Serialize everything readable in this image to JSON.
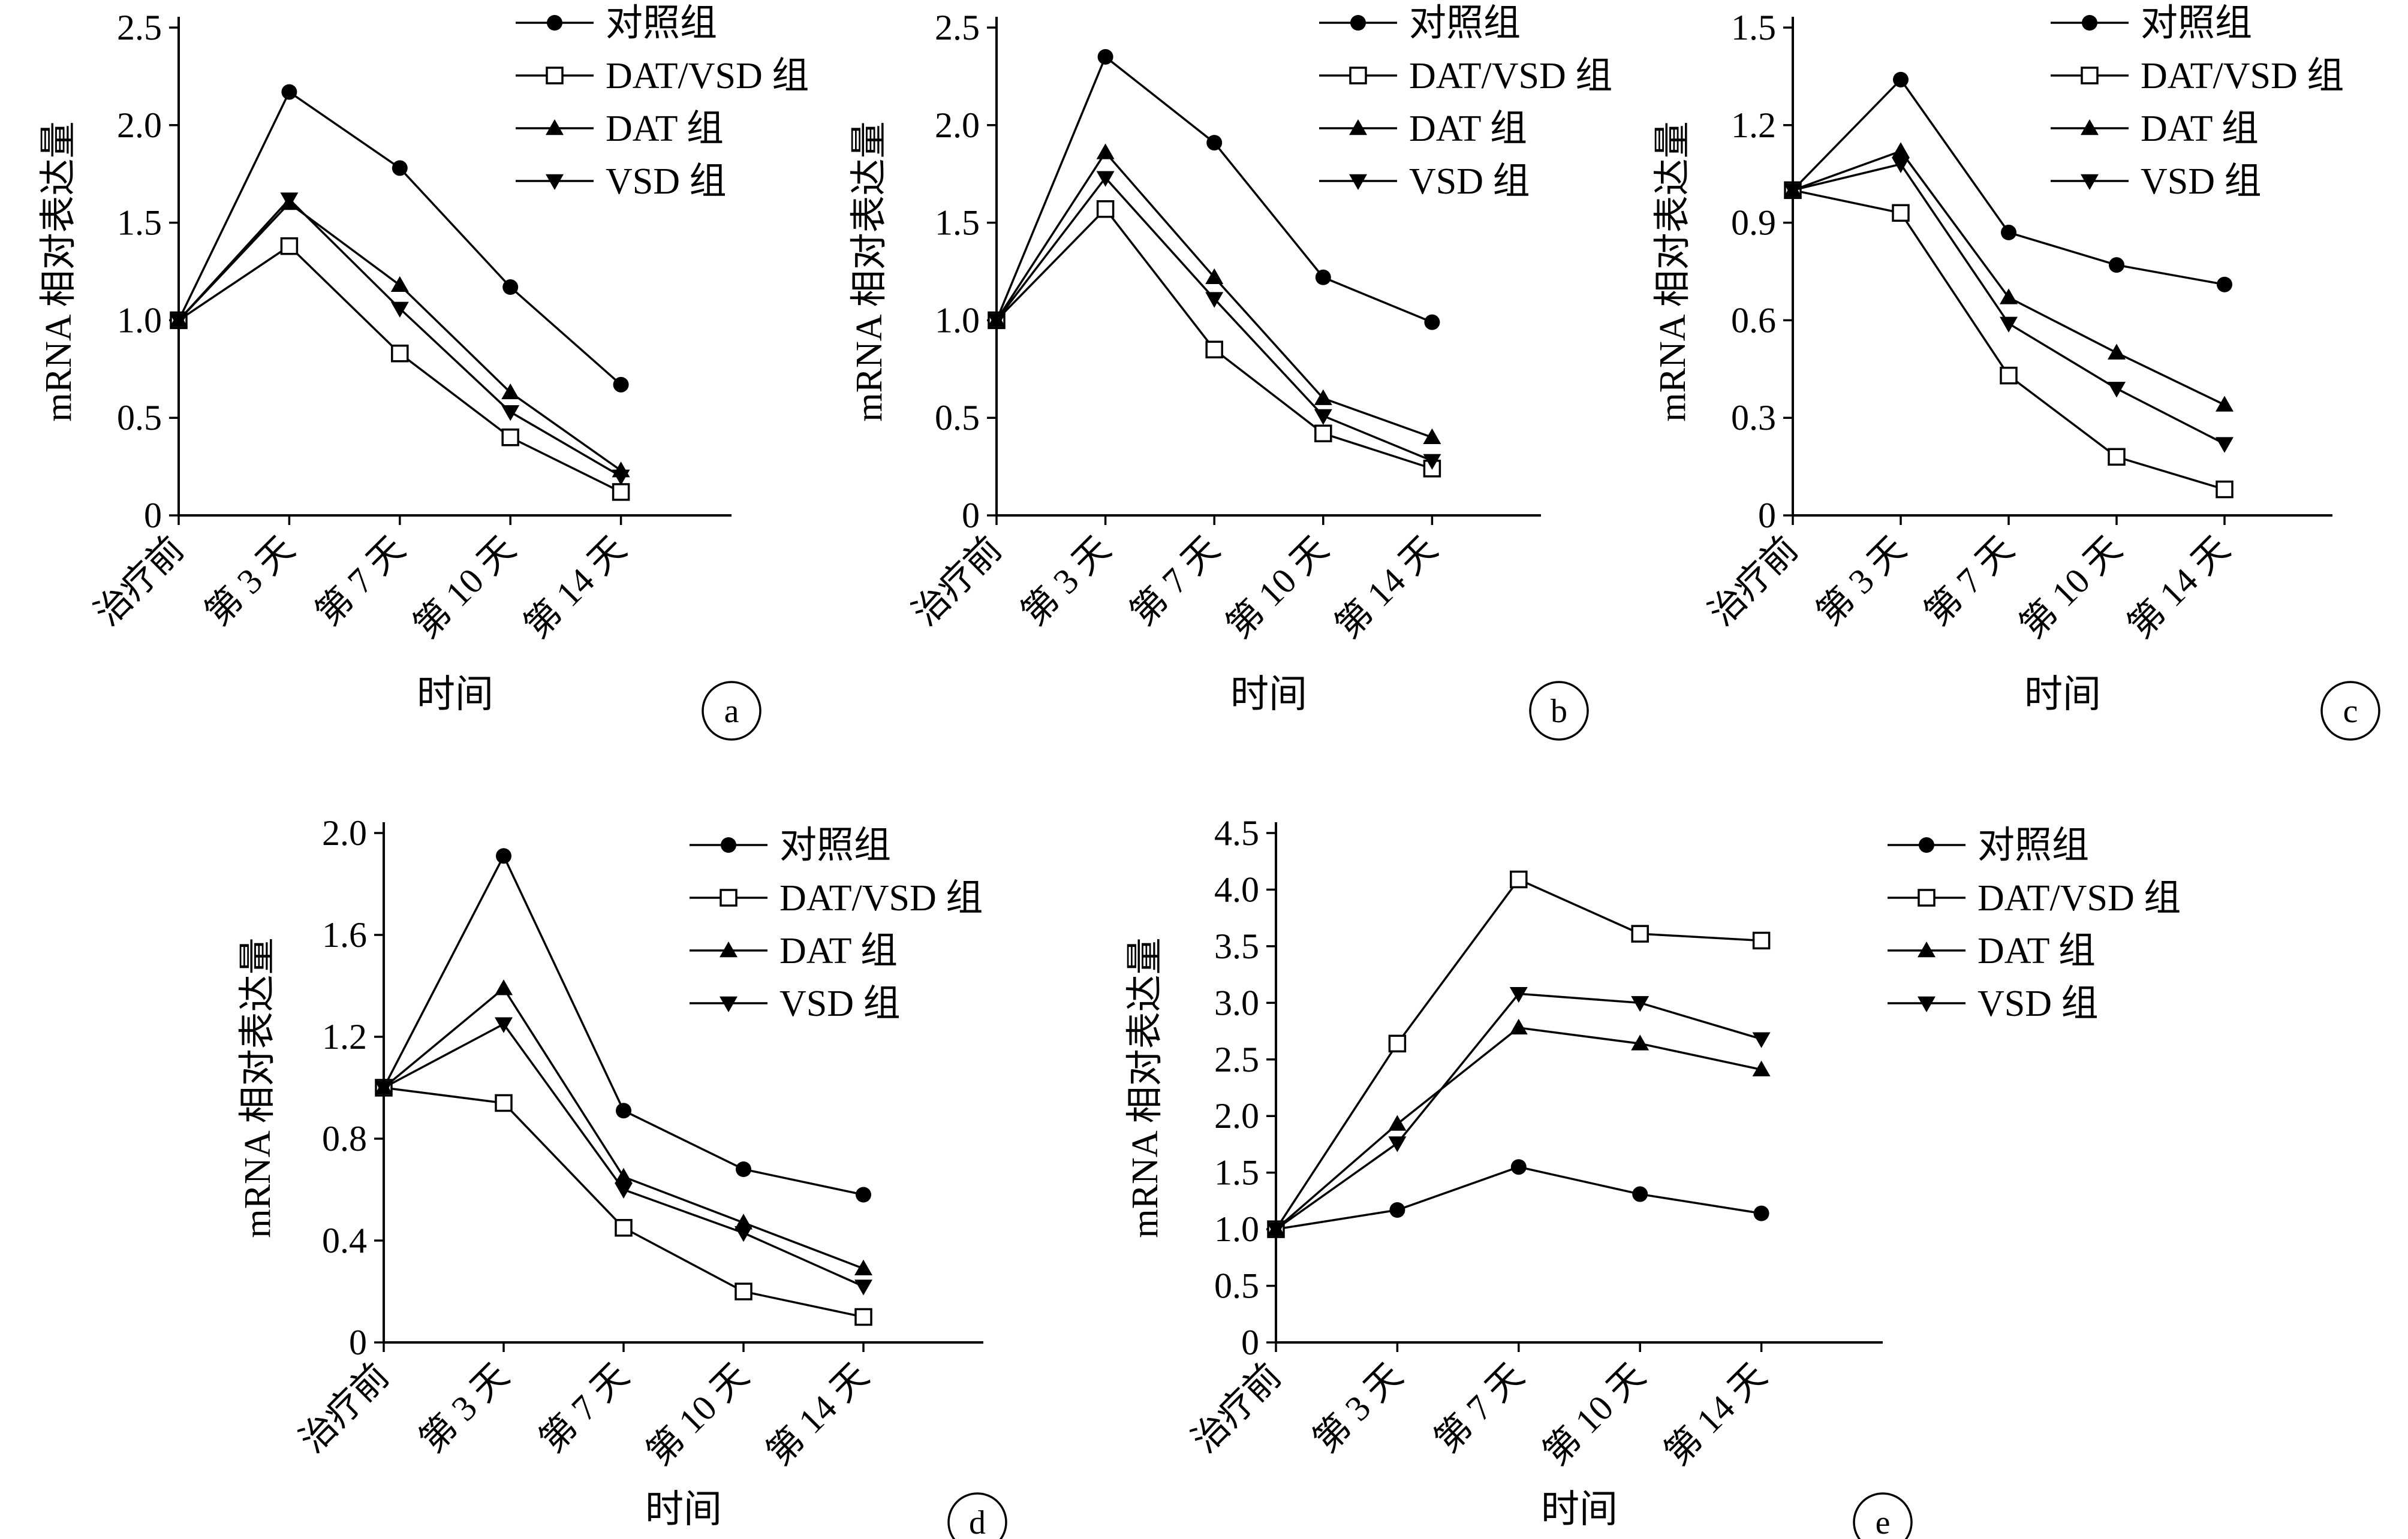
{
  "chart_data": [
    {
      "panel_label": "a",
      "type": "line",
      "categories": [
        "治疗前",
        "第 3 天",
        "第 7 天",
        "第 10 天",
        "第 14 天"
      ],
      "xlabel": "时间",
      "ylabel": "mRNA 相对表达量",
      "ylim": [
        0,
        2.5
      ],
      "yticks": [
        "0",
        "0.5",
        "1.0",
        "1.5",
        "2.0",
        "2.5"
      ],
      "legend_position": "top-right",
      "series": [
        {
          "name": "对照组",
          "marker": "filled-circle",
          "values": [
            1.0,
            2.17,
            1.78,
            1.17,
            0.67
          ]
        },
        {
          "name": "DAT/VSD 组",
          "marker": "open-square",
          "values": [
            1.0,
            1.38,
            0.83,
            0.4,
            0.12
          ]
        },
        {
          "name": "DAT 组",
          "marker": "filled-triangle-up",
          "values": [
            1.0,
            1.6,
            1.18,
            0.63,
            0.23
          ]
        },
        {
          "name": "VSD 组",
          "marker": "filled-triangle-down",
          "values": [
            1.0,
            1.62,
            1.06,
            0.53,
            0.2
          ]
        }
      ]
    },
    {
      "panel_label": "b",
      "type": "line",
      "categories": [
        "治疗前",
        "第 3 天",
        "第 7 天",
        "第 10 天",
        "第 14 天"
      ],
      "xlabel": "时间",
      "ylabel": "mRNA 相对表达量",
      "ylim": [
        0,
        2.5
      ],
      "yticks": [
        "0",
        "0.5",
        "1.0",
        "1.5",
        "2.0",
        "2.5"
      ],
      "legend_position": "top-right",
      "series": [
        {
          "name": "对照组",
          "marker": "filled-circle",
          "values": [
            1.0,
            2.35,
            1.91,
            1.22,
            0.99
          ]
        },
        {
          "name": "DAT/VSD 组",
          "marker": "open-square",
          "values": [
            1.0,
            1.57,
            0.85,
            0.42,
            0.24
          ]
        },
        {
          "name": "DAT 组",
          "marker": "filled-triangle-up",
          "values": [
            1.0,
            1.86,
            1.22,
            0.6,
            0.4
          ]
        },
        {
          "name": "VSD 组",
          "marker": "filled-triangle-down",
          "values": [
            1.0,
            1.73,
            1.11,
            0.51,
            0.28
          ]
        }
      ]
    },
    {
      "panel_label": "c",
      "type": "line",
      "categories": [
        "治疗前",
        "第 3 天",
        "第 7 天",
        "第 10 天",
        "第 14 天"
      ],
      "xlabel": "时间",
      "ylabel": "mRNA 相对表达量",
      "ylim": [
        0,
        1.5
      ],
      "yticks": [
        "0",
        "0.3",
        "0.6",
        "0.9",
        "1.2",
        "1.5"
      ],
      "legend_position": "top-right",
      "series": [
        {
          "name": "对照组",
          "marker": "filled-circle",
          "values": [
            1.0,
            1.34,
            0.87,
            0.77,
            0.71
          ]
        },
        {
          "name": "DAT/VSD 组",
          "marker": "open-square",
          "values": [
            1.0,
            0.93,
            0.43,
            0.18,
            0.08
          ]
        },
        {
          "name": "DAT 组",
          "marker": "filled-triangle-up",
          "values": [
            1.0,
            1.12,
            0.67,
            0.5,
            0.34
          ]
        },
        {
          "name": "VSD 组",
          "marker": "filled-triangle-down",
          "values": [
            1.0,
            1.08,
            0.59,
            0.39,
            0.22
          ]
        }
      ]
    },
    {
      "panel_label": "d",
      "type": "line",
      "categories": [
        "治疗前",
        "第 3 天",
        "第 7 天",
        "第 10 天",
        "第 14 天"
      ],
      "xlabel": "时间",
      "ylabel": "mRNA 相对表达量",
      "ylim": [
        0,
        2.0
      ],
      "yticks": [
        "0",
        "0.4",
        "0.8",
        "1.2",
        "1.6",
        "2.0"
      ],
      "legend_position": "top-right",
      "series": [
        {
          "name": "对照组",
          "marker": "filled-circle",
          "values": [
            1.0,
            1.91,
            0.91,
            0.68,
            0.58
          ]
        },
        {
          "name": "DAT/VSD 组",
          "marker": "open-square",
          "values": [
            1.0,
            0.94,
            0.45,
            0.2,
            0.1
          ]
        },
        {
          "name": "DAT 组",
          "marker": "filled-triangle-up",
          "values": [
            1.0,
            1.39,
            0.65,
            0.47,
            0.29
          ]
        },
        {
          "name": "VSD 组",
          "marker": "filled-triangle-down",
          "values": [
            1.0,
            1.25,
            0.6,
            0.43,
            0.22
          ]
        }
      ]
    },
    {
      "panel_label": "e",
      "type": "line",
      "categories": [
        "治疗前",
        "第 3 天",
        "第 7 天",
        "第 10 天",
        "第 14 天"
      ],
      "xlabel": "时间",
      "ylabel": "mRNA 相对表达量",
      "ylim": [
        0,
        4.5
      ],
      "yticks": [
        "0",
        "0.5",
        "1.0",
        "1.5",
        "2.0",
        "2.5",
        "3.0",
        "3.5",
        "4.0",
        "4.5"
      ],
      "legend_position": "top-right",
      "series": [
        {
          "name": "对照组",
          "marker": "filled-circle",
          "values": [
            1.0,
            1.17,
            1.55,
            1.31,
            1.14
          ]
        },
        {
          "name": "DAT/VSD 组",
          "marker": "open-square",
          "values": [
            1.0,
            2.64,
            4.09,
            3.61,
            3.55
          ]
        },
        {
          "name": "DAT 组",
          "marker": "filled-triangle-up",
          "values": [
            1.0,
            1.93,
            2.78,
            2.64,
            2.41
          ]
        },
        {
          "name": "VSD 组",
          "marker": "filled-triangle-down",
          "values": [
            1.0,
            1.76,
            3.08,
            3.0,
            2.68
          ]
        }
      ]
    }
  ]
}
